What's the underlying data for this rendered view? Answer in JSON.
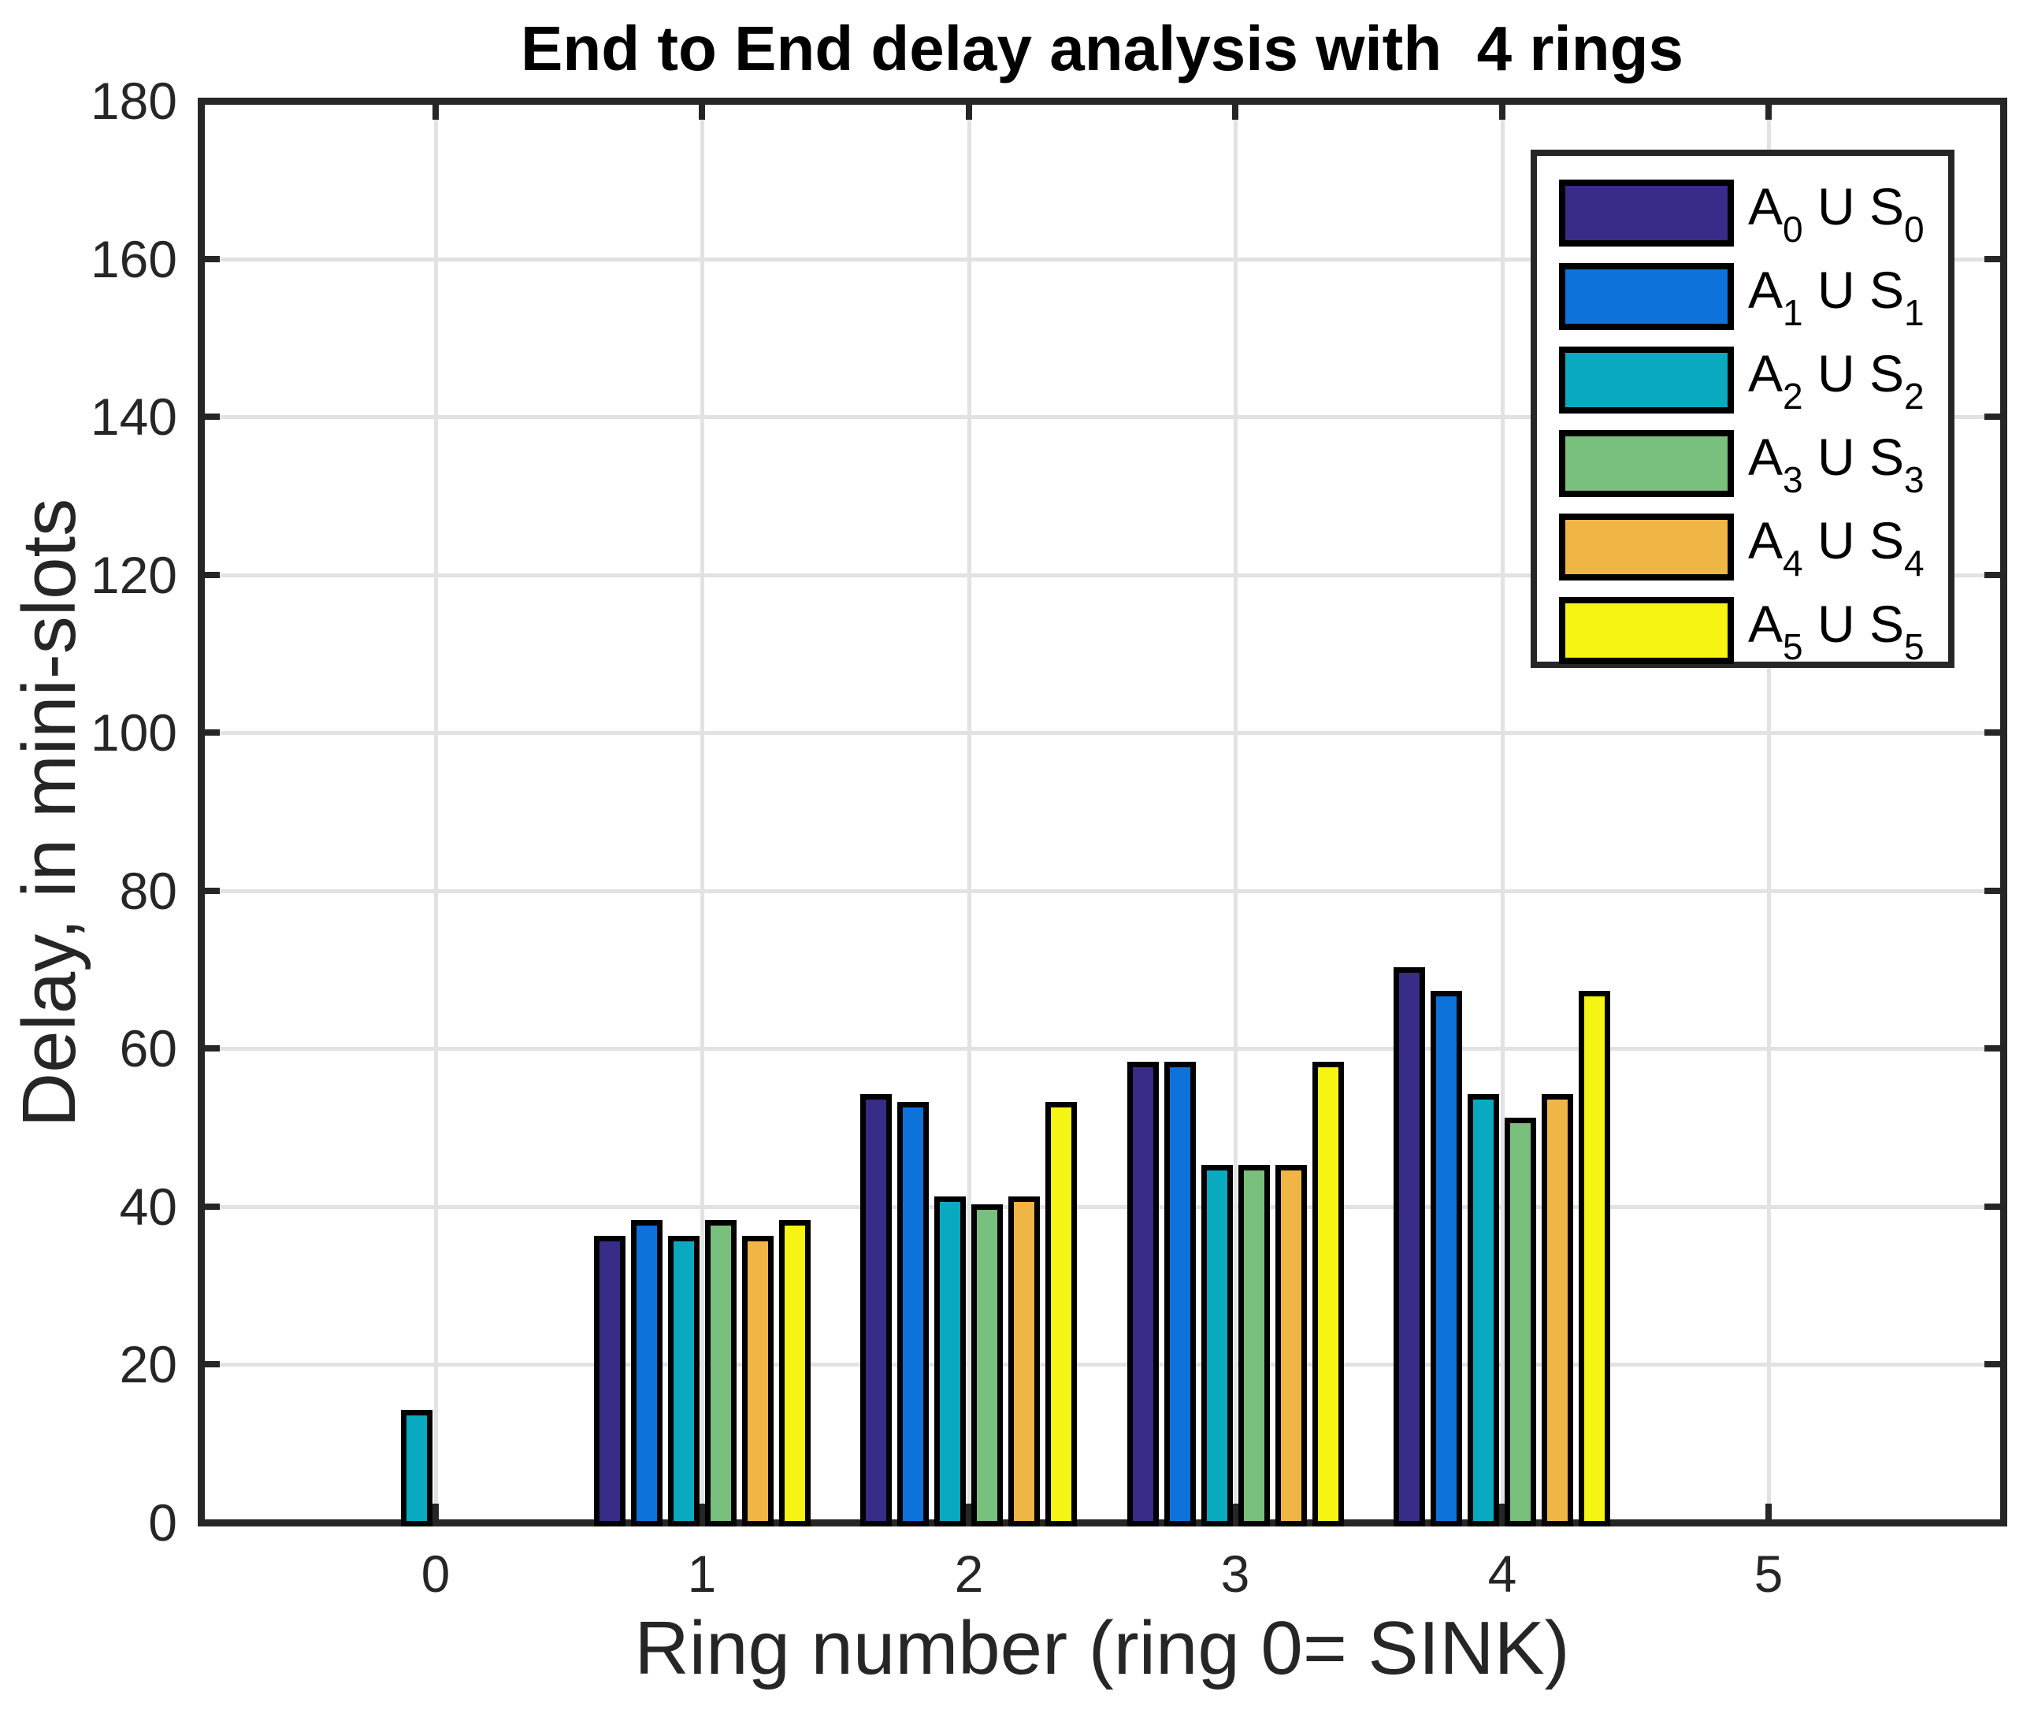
{
  "chart_data": {
    "type": "bar",
    "title": "End to End delay analysis with  4 rings",
    "xlabel": "Ring number (ring 0= SINK)",
    "ylabel": "Delay, in mini-slots",
    "categories": [
      "0",
      "1",
      "2",
      "3",
      "4",
      "5"
    ],
    "x_tick_values": [
      0,
      1,
      2,
      3,
      4,
      5
    ],
    "y_ticks": [
      0,
      20,
      40,
      60,
      80,
      100,
      120,
      140,
      160,
      180
    ],
    "ylim": [
      0,
      180
    ],
    "grid": true,
    "legend_position": "northeast",
    "series": [
      {
        "name": "A_0 U S_0",
        "label_parts": {
          "main": "A",
          "sub1": "0",
          "mid": " U S",
          "sub2": "0"
        },
        "color": "#372c87",
        "values": [
          0,
          36,
          54,
          58,
          70,
          0
        ]
      },
      {
        "name": "A_1 U S_1",
        "label_parts": {
          "main": "A",
          "sub1": "1",
          "mid": " U S",
          "sub2": "1"
        },
        "color": "#0e72db",
        "values": [
          0,
          38,
          53,
          58,
          67,
          0
        ]
      },
      {
        "name": "A_2 U S_2",
        "label_parts": {
          "main": "A",
          "sub1": "2",
          "mid": " U S",
          "sub2": "2"
        },
        "color": "#09aabf",
        "values": [
          14,
          36,
          41,
          45,
          54,
          0
        ]
      },
      {
        "name": "A_3 U S_3",
        "label_parts": {
          "main": "A",
          "sub1": "3",
          "mid": " U S",
          "sub2": "3"
        },
        "color": "#79bf7d",
        "values": [
          0,
          38,
          40,
          45,
          51,
          0
        ]
      },
      {
        "name": "A_4 U S_4",
        "label_parts": {
          "main": "A",
          "sub1": "4",
          "mid": " U S",
          "sub2": "4"
        },
        "color": "#efb545",
        "values": [
          0,
          36,
          41,
          45,
          54,
          0
        ]
      },
      {
        "name": "A_5 U S_5",
        "label_parts": {
          "main": "A",
          "sub1": "5",
          "mid": " U S",
          "sub2": "5"
        },
        "color": "#f5f412",
        "values": [
          0,
          38,
          53,
          58,
          67,
          0
        ]
      }
    ],
    "colors": {
      "axis": "#262626",
      "grid": "#e2e2e2",
      "bar_edge": "#000000",
      "background": "#ffffff"
    }
  }
}
